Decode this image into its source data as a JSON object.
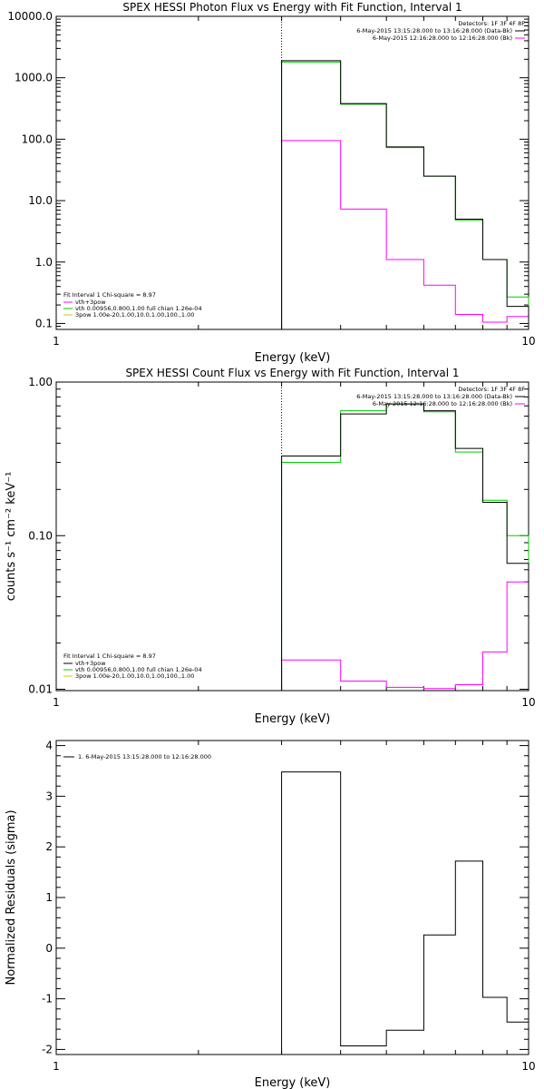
{
  "colors": {
    "data": "#000000",
    "fit": "#00cc00",
    "background": "#ff00ff",
    "total": "#cccc00"
  },
  "chart_data": [
    {
      "type": "line",
      "title": "SPEX HESSI Photon Flux vs Energy with Fit Function, Interval 1",
      "xlabel": "Energy (keV)",
      "ylabel": "",
      "xscale": "log",
      "yscale": "log",
      "xlim": [
        1,
        10
      ],
      "ylim": [
        0.08,
        10000
      ],
      "xticks": [
        {
          "v": 1,
          "label": "1"
        },
        {
          "v": 10,
          "label": "10"
        }
      ],
      "yticks": [
        {
          "v": 0.1,
          "label": "0.1"
        },
        {
          "v": 1,
          "label": "1.0"
        },
        {
          "v": 10,
          "label": "10.0"
        },
        {
          "v": 100,
          "label": "100.0"
        },
        {
          "v": 1000,
          "label": "1000.0"
        },
        {
          "v": 10000,
          "label": "10000.0"
        }
      ],
      "vline_x": 3,
      "bin_edges": [
        3,
        4,
        5,
        6,
        7,
        8,
        9,
        10
      ],
      "series": [
        {
          "role": "data",
          "color": "#000000",
          "values": [
            1900,
            380,
            75,
            25,
            5.0,
            1.1,
            0.19
          ]
        },
        {
          "role": "fit",
          "color": "#00cc00",
          "values": [
            1800,
            370,
            73,
            25,
            4.8,
            1.1,
            0.27
          ]
        },
        {
          "role": "background",
          "color": "#ff00ff",
          "values": [
            95,
            7.3,
            1.1,
            0.42,
            0.14,
            0.105,
            0.13
          ]
        }
      ],
      "legend_tr": {
        "header": "Detectors: 1F 3F 4F 8F",
        "entries": [
          {
            "text": "6-May-2015 13:15:28.000 to 13:16:28.000 (Data-Bk)",
            "color": "#000000"
          },
          {
            "text": "6-May-2015 12:16:28.000 to 12:16:28.000 (Bk)",
            "color": "#ff00ff"
          }
        ]
      },
      "legend_bl": {
        "header": "Fit Interval 1   Chi-square = 8.97",
        "entries": [
          {
            "text": "vth+3pow",
            "color": "#ff00ff"
          },
          {
            "text": "vth 0.00956,0.800,1.00  full chian 1.26e-04",
            "color": "#00cc00"
          },
          {
            "text": "3pow 1.00e-20,1.00,10.0,1.00,100.,1.00",
            "color": "#cccc00"
          }
        ]
      }
    },
    {
      "type": "line",
      "title": "SPEX HESSI Count Flux vs Energy with Fit Function, Interval 1",
      "xlabel": "Energy (keV)",
      "ylabel": "counts s⁻¹ cm⁻² keV⁻¹",
      "xscale": "log",
      "yscale": "log",
      "xlim": [
        1,
        10
      ],
      "ylim": [
        0.0098,
        1.0
      ],
      "xticks": [
        {
          "v": 1,
          "label": "1"
        },
        {
          "v": 10,
          "label": "10"
        }
      ],
      "yticks": [
        {
          "v": 0.01,
          "label": "0.01"
        },
        {
          "v": 0.1,
          "label": "0.10"
        },
        {
          "v": 1.0,
          "label": "1.00"
        }
      ],
      "vline_x": 3,
      "bin_edges": [
        3,
        4,
        5,
        6,
        7,
        8,
        9,
        10
      ],
      "series": [
        {
          "role": "data",
          "color": "#000000",
          "values": [
            0.33,
            0.62,
            0.72,
            0.65,
            0.37,
            0.165,
            0.066
          ]
        },
        {
          "role": "fit",
          "color": "#00cc00",
          "values": [
            0.3,
            0.65,
            0.72,
            0.64,
            0.35,
            0.17,
            0.1
          ]
        },
        {
          "role": "background",
          "color": "#ff00ff",
          "values": [
            0.0155,
            0.0113,
            0.0103,
            0.0101,
            0.0107,
            0.0175,
            0.05
          ]
        }
      ],
      "legend_tr": {
        "header": "Detectors: 1F 3F 4F 8F",
        "entries": [
          {
            "text": "6-May-2015 13:15:28.000 to 13:16:28.000 (Data-Bk)",
            "color": "#000000"
          },
          {
            "text": "6-May-2015 12:16:28.000 to 12:16:28.000 (Bk)",
            "color": "#ff00ff"
          }
        ]
      },
      "legend_bl": {
        "header": "Fit Interval 1   Chi-square = 8.97",
        "entries": [
          {
            "text": "vth+3pow",
            "color": "#000000"
          },
          {
            "text": "vth 0.00956,0.800,1.00  full chian 1.26e-04",
            "color": "#00cc00"
          },
          {
            "text": "3pow 1.00e-20,1.00,10.0,1.00,100.,1.00",
            "color": "#cccc00"
          }
        ]
      }
    },
    {
      "type": "line",
      "title": "",
      "xlabel": "Energy (keV)",
      "ylabel": "Normalized Residuals (sigma)",
      "xscale": "log",
      "yscale": "linear",
      "xlim": [
        1,
        10
      ],
      "ylim": [
        -2.1,
        4.1
      ],
      "xticks": [
        {
          "v": 1,
          "label": "1"
        },
        {
          "v": 10,
          "label": "10"
        }
      ],
      "yticks": [
        {
          "v": -2,
          "label": "-2"
        },
        {
          "v": -1,
          "label": "-1"
        },
        {
          "v": 0,
          "label": "0"
        },
        {
          "v": 1,
          "label": "1"
        },
        {
          "v": 2,
          "label": "2"
        },
        {
          "v": 3,
          "label": "3"
        },
        {
          "v": 4,
          "label": "4"
        }
      ],
      "bin_edges": [
        3,
        4,
        5,
        6,
        7,
        8,
        9,
        10
      ],
      "series": [
        {
          "role": "residuals",
          "color": "#000000",
          "values": [
            3.48,
            -1.93,
            -1.62,
            0.26,
            1.72,
            -0.97,
            -1.46
          ]
        }
      ],
      "legend_tl": {
        "entries": [
          {
            "text": "1. 6-May-2015 13:15:28.000 to 12:16:28.000",
            "color": "#000000"
          }
        ]
      }
    }
  ]
}
